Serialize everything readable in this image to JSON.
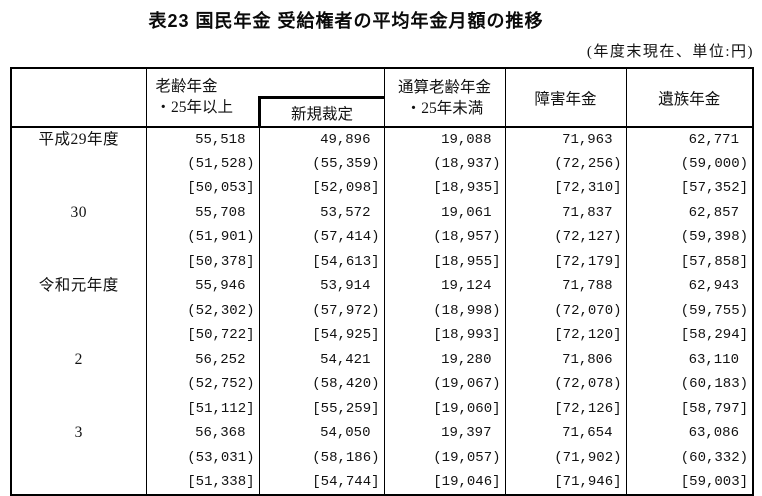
{
  "page": {
    "title": "表23 国民年金 受給権者の平均年金月額の推移",
    "unit_note": "(年度末現在、単位:円)"
  },
  "table": {
    "headers": {
      "year_col": "",
      "old_age": "老齢年金\n・25年以上",
      "new_ruling": "新規裁定",
      "total_old_age": "通算老齢年金\n・25年未満",
      "disability": "障害年金",
      "survivor": "遺族年金"
    },
    "groups": [
      {
        "year": "平成29年度",
        "rows": [
          [
            "55,518",
            "49,896",
            "19,088",
            "71,963",
            "62,771"
          ],
          [
            "(51,528)",
            "(55,359)",
            "(18,937)",
            "(72,256)",
            "(59,000)"
          ],
          [
            "[50,053]",
            "[52,098]",
            "[18,935]",
            "[72,310]",
            "[57,352]"
          ]
        ]
      },
      {
        "year": "30",
        "rows": [
          [
            "55,708",
            "53,572",
            "19,061",
            "71,837",
            "62,857"
          ],
          [
            "(51,901)",
            "(57,414)",
            "(18,957)",
            "(72,127)",
            "(59,398)"
          ],
          [
            "[50,378]",
            "[54,613]",
            "[18,955]",
            "[72,179]",
            "[57,858]"
          ]
        ]
      },
      {
        "year": "令和元年度",
        "rows": [
          [
            "55,946",
            "53,914",
            "19,124",
            "71,788",
            "62,943"
          ],
          [
            "(52,302)",
            "(57,972)",
            "(18,998)",
            "(72,070)",
            "(59,755)"
          ],
          [
            "[50,722]",
            "[54,925]",
            "[18,993]",
            "[72,120]",
            "[58,294]"
          ]
        ]
      },
      {
        "year": "2",
        "rows": [
          [
            "56,252",
            "54,421",
            "19,280",
            "71,806",
            "63,110"
          ],
          [
            "(52,752)",
            "(58,420)",
            "(19,067)",
            "(72,078)",
            "(60,183)"
          ],
          [
            "[51,112]",
            "[55,259]",
            "[19,060]",
            "[72,126]",
            "[58,797]"
          ]
        ]
      },
      {
        "year": "3",
        "rows": [
          [
            "56,368",
            "54,050",
            "19,397",
            "71,654",
            "63,086"
          ],
          [
            "(53,031)",
            "(58,186)",
            "(19,057)",
            "(71,902)",
            "(60,332)"
          ],
          [
            "[51,338]",
            "[54,744]",
            "[19,046]",
            "[71,946]",
            "[59,003]"
          ]
        ]
      }
    ]
  }
}
